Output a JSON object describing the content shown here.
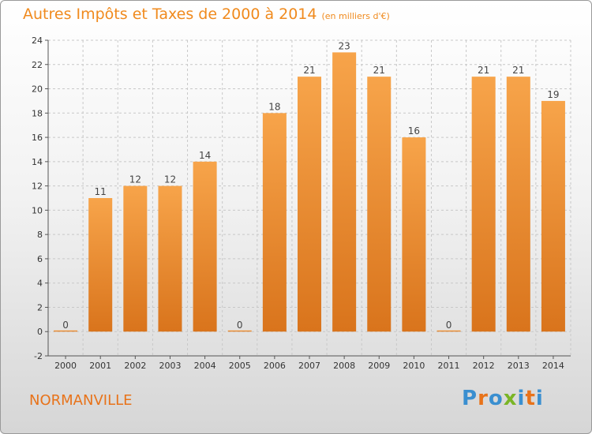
{
  "title": "Autres Impôts et Taxes de 2000 à 2014",
  "subtitle": "(en milliers d'€)",
  "city": "NORMANVILLE",
  "logo": "Proxiti",
  "colors": {
    "title": "#f08a1d",
    "bar_light": "#f7a44a",
    "bar_dark": "#d9741c",
    "logo_letters": [
      "#3a8fd0",
      "#e8731a",
      "#3a8fd0",
      "#7ab526",
      "#3a8fd0",
      "#e8731a",
      "#3a8fd0"
    ]
  },
  "chart_data": {
    "type": "bar",
    "categories": [
      "2000",
      "2001",
      "2002",
      "2003",
      "2004",
      "2005",
      "2006",
      "2007",
      "2008",
      "2009",
      "2010",
      "2011",
      "2012",
      "2013",
      "2014"
    ],
    "values": [
      0,
      11,
      12,
      12,
      14,
      0,
      18,
      21,
      23,
      21,
      16,
      0,
      21,
      21,
      19
    ],
    "ylim": [
      -2,
      24
    ],
    "yticks": [
      -2,
      0,
      2,
      4,
      6,
      8,
      10,
      12,
      14,
      16,
      18,
      20,
      22,
      24
    ],
    "grid": true,
    "title": "Autres Impôts et Taxes de 2000 à 2014",
    "ylabel": "",
    "xlabel": ""
  }
}
